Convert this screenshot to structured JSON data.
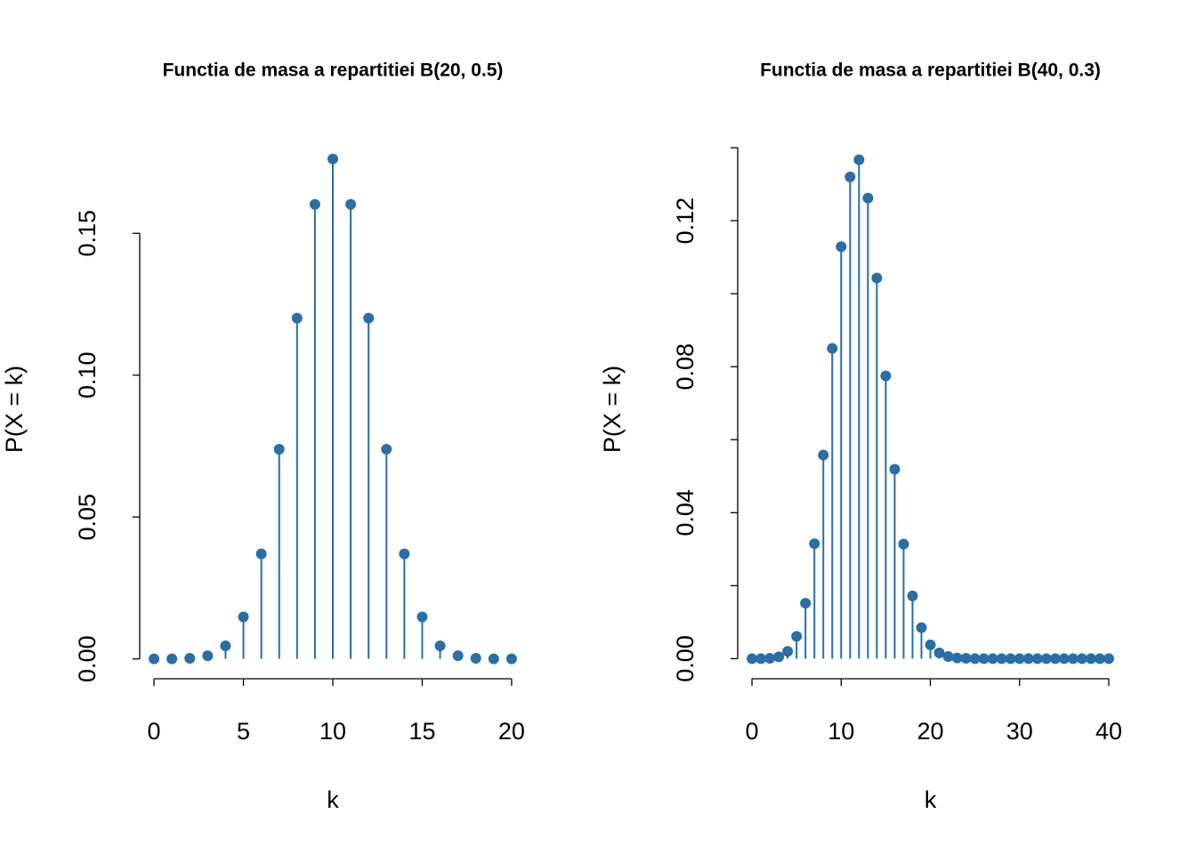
{
  "chart_data": [
    {
      "type": "stem",
      "title": "Functia de masa a repartitiei B(20, 0.5)",
      "x_label": "k",
      "y_label": "P(X = k)",
      "color": "#2a6ea6",
      "x": [
        0,
        1,
        2,
        3,
        4,
        5,
        6,
        7,
        8,
        9,
        10,
        11,
        12,
        13,
        14,
        15,
        16,
        17,
        18,
        19,
        20
      ],
      "values": [
        0,
        0,
        0.0002,
        0.0011,
        0.0046,
        0.0148,
        0.037,
        0.0739,
        0.1201,
        0.1602,
        0.1762,
        0.1602,
        0.1201,
        0.0739,
        0.037,
        0.0148,
        0.0046,
        0.0011,
        0.0002,
        0,
        0
      ],
      "xlim": [
        -0.8,
        20.8
      ],
      "ylim": [
        -0.007,
        0.183
      ],
      "xticks": [
        0,
        5,
        10,
        15,
        20
      ],
      "yticks": [
        {
          "value": 0,
          "label": "0.00"
        },
        0.05,
        {
          "value": 0.1,
          "label": "0.10"
        },
        0.15
      ]
    },
    {
      "type": "stem",
      "title": "Functia de masa a repartitiei B(40, 0.3)",
      "x_label": "k",
      "y_label": "P(X = k)",
      "color": "#2a6ea6",
      "x": [
        0,
        1,
        2,
        3,
        4,
        5,
        6,
        7,
        8,
        9,
        10,
        11,
        12,
        13,
        14,
        15,
        16,
        17,
        18,
        19,
        20,
        21,
        22,
        23,
        24,
        25,
        26,
        27,
        28,
        29,
        30,
        31,
        32,
        33,
        34,
        35,
        36,
        37,
        38,
        39,
        40
      ],
      "values": [
        0,
        0,
        0.0001,
        0.0005,
        0.002,
        0.0061,
        0.0152,
        0.0315,
        0.0558,
        0.085,
        0.1129,
        0.132,
        0.1367,
        0.1262,
        0.1043,
        0.0775,
        0.0519,
        0.0314,
        0.0172,
        0.0085,
        0.0038,
        0.0016,
        0.0006,
        0.0002,
        0.0001,
        0,
        0,
        0,
        0,
        0,
        0,
        0,
        0,
        0,
        0,
        0,
        0,
        0,
        0,
        0,
        0
      ],
      "xlim": [
        -1.6,
        41.6
      ],
      "ylim": [
        -0.0055,
        0.1422
      ],
      "xticks": [
        0,
        10,
        20,
        30,
        40
      ],
      "yticks": [
        {
          "value": 0,
          "label": "0.00"
        },
        0.04,
        0.08,
        0.12
      ],
      "yticks_unlabeled": [
        0.02,
        0.06,
        0.1,
        0.14
      ]
    }
  ]
}
